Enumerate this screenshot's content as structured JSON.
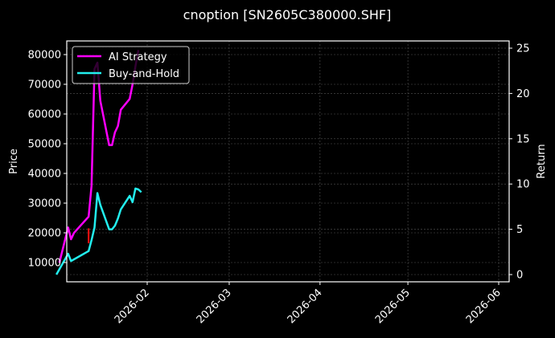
{
  "chart_data": {
    "type": "line",
    "title": "cnoption [SN2605C380000.SHF]",
    "xlabel": "",
    "ylabel": "Price",
    "y2label": "Return",
    "grid": true,
    "legend_position": "upper left",
    "x_ticks": [
      "2026-02",
      "2026-03",
      "2026-04",
      "2026-05",
      "2026-06"
    ],
    "y_ticks": [
      10000,
      20000,
      30000,
      40000,
      50000,
      60000,
      70000,
      80000
    ],
    "y2_ticks": [
      0,
      5,
      10,
      15,
      20,
      25
    ],
    "ylim": [
      4000,
      84500
    ],
    "y2lim": [
      -0.8,
      25.6
    ],
    "series": [
      {
        "name": "AI Strategy",
        "axis": "return",
        "color": "#ff00ff",
        "x": [
          "2026-01-02",
          "2026-01-05",
          "2026-01-06",
          "2026-01-07",
          "2026-01-12",
          "2026-01-13",
          "2026-01-14",
          "2026-01-15",
          "2026-01-16",
          "2026-01-19",
          "2026-01-20",
          "2026-01-21",
          "2026-01-22",
          "2026-01-23",
          "2026-01-26",
          "2026-01-27",
          "2026-01-28",
          "2026-01-29"
        ],
        "values": [
          1.3,
          5.2,
          3.9,
          4.6,
          6.4,
          9.8,
          22.7,
          23.4,
          19.2,
          14.3,
          14.3,
          15.7,
          16.4,
          18.2,
          19.4,
          21.0,
          23.0,
          24.8
        ]
      },
      {
        "name": "Buy-and-Hold",
        "axis": "return",
        "color": "#22eeee",
        "x": [
          "2026-01-01",
          "2026-01-05",
          "2026-01-06",
          "2026-01-12",
          "2026-01-13",
          "2026-01-14",
          "2026-01-15",
          "2026-01-16",
          "2026-01-19",
          "2026-01-20",
          "2026-01-21",
          "2026-01-22",
          "2026-01-23",
          "2026-01-26",
          "2026-01-27",
          "2026-01-28",
          "2026-01-29",
          "2026-01-30"
        ],
        "values": [
          0.0,
          2.3,
          1.5,
          2.6,
          3.8,
          5.2,
          9.0,
          7.7,
          5.0,
          5.0,
          5.4,
          6.2,
          7.2,
          8.7,
          8.0,
          9.5,
          9.4,
          9.1
        ]
      }
    ],
    "price_markers": [
      {
        "type": "bar",
        "color": "#ff1010",
        "x": "2026-01-12",
        "low": 16500,
        "high": 21500
      }
    ]
  },
  "legend": {
    "items": [
      {
        "label": "AI Strategy",
        "color": "#ff00ff"
      },
      {
        "label": "Buy-and-Hold",
        "color": "#22eeee"
      }
    ]
  }
}
